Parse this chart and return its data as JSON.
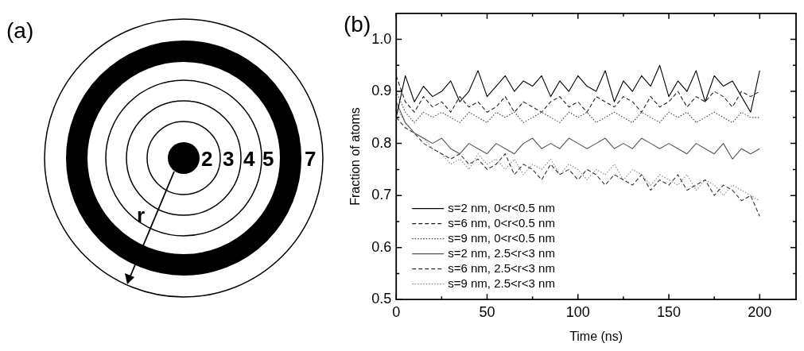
{
  "chart_data": [
    {
      "type": "other",
      "title": "(a)",
      "annotations": [
        "2",
        "3",
        "4",
        "5",
        "7",
        "r"
      ]
    },
    {
      "type": "line",
      "title": "(b)",
      "xlabel": "Time (ns)",
      "ylabel": "Fraction of atoms",
      "x": [
        0,
        5,
        10,
        15,
        20,
        25,
        30,
        35,
        40,
        45,
        50,
        55,
        60,
        65,
        70,
        75,
        80,
        85,
        90,
        95,
        100,
        105,
        110,
        115,
        120,
        125,
        130,
        135,
        140,
        145,
        150,
        155,
        160,
        165,
        170,
        175,
        180,
        185,
        190,
        195,
        200
      ],
      "series": [
        {
          "name": "s=2 nm, 0<r<0.5 nm",
          "color": "#000000",
          "line_style": "solid",
          "values": [
            0.85,
            0.93,
            0.88,
            0.91,
            0.89,
            0.9,
            0.92,
            0.88,
            0.9,
            0.94,
            0.89,
            0.91,
            0.93,
            0.9,
            0.92,
            0.91,
            0.93,
            0.89,
            0.92,
            0.9,
            0.93,
            0.91,
            0.9,
            0.94,
            0.88,
            0.92,
            0.9,
            0.93,
            0.91,
            0.95,
            0.89,
            0.92,
            0.9,
            0.94,
            0.88,
            0.93,
            0.91,
            0.92,
            0.89,
            0.86,
            0.94
          ]
        },
        {
          "name": "s=6 nm, 0<r<0.5 nm",
          "color": "#222222",
          "line_style": "dashed",
          "values": [
            0.93,
            0.88,
            0.86,
            0.89,
            0.87,
            0.88,
            0.86,
            0.89,
            0.87,
            0.88,
            0.86,
            0.87,
            0.89,
            0.86,
            0.88,
            0.87,
            0.86,
            0.88,
            0.89,
            0.87,
            0.88,
            0.86,
            0.89,
            0.88,
            0.87,
            0.89,
            0.88,
            0.86,
            0.89,
            0.87,
            0.88,
            0.9,
            0.87,
            0.89,
            0.88,
            0.9,
            0.89,
            0.87,
            0.9,
            0.89,
            0.9
          ]
        },
        {
          "name": "s=9 nm, 0<r<0.5 nm",
          "color": "#444444",
          "line_style": "dotted",
          "values": [
            0.9,
            0.86,
            0.84,
            0.86,
            0.85,
            0.86,
            0.85,
            0.84,
            0.86,
            0.85,
            0.84,
            0.86,
            0.85,
            0.86,
            0.84,
            0.85,
            0.86,
            0.85,
            0.84,
            0.86,
            0.85,
            0.86,
            0.84,
            0.85,
            0.86,
            0.85,
            0.84,
            0.86,
            0.85,
            0.84,
            0.86,
            0.85,
            0.86,
            0.84,
            0.85,
            0.86,
            0.85,
            0.84,
            0.86,
            0.85,
            0.85
          ]
        },
        {
          "name": "s=2 nm, 2.5<r<3 nm",
          "color": "#555555",
          "line_style": "solid",
          "values": [
            0.88,
            0.84,
            0.82,
            0.81,
            0.8,
            0.81,
            0.79,
            0.78,
            0.8,
            0.79,
            0.78,
            0.8,
            0.79,
            0.78,
            0.8,
            0.81,
            0.79,
            0.8,
            0.79,
            0.81,
            0.8,
            0.79,
            0.8,
            0.81,
            0.79,
            0.8,
            0.79,
            0.81,
            0.8,
            0.79,
            0.8,
            0.79,
            0.78,
            0.8,
            0.79,
            0.78,
            0.8,
            0.77,
            0.79,
            0.78,
            0.79
          ]
        },
        {
          "name": "s=6 nm, 2.5<r<3 nm",
          "color": "#333333",
          "line_style": "dashed",
          "values": [
            0.85,
            0.83,
            0.82,
            0.8,
            0.79,
            0.78,
            0.77,
            0.78,
            0.76,
            0.77,
            0.75,
            0.76,
            0.78,
            0.74,
            0.76,
            0.75,
            0.73,
            0.76,
            0.74,
            0.75,
            0.73,
            0.75,
            0.74,
            0.72,
            0.74,
            0.73,
            0.72,
            0.74,
            0.71,
            0.73,
            0.72,
            0.74,
            0.71,
            0.72,
            0.73,
            0.7,
            0.72,
            0.71,
            0.69,
            0.7,
            0.66
          ]
        },
        {
          "name": "s=9 nm, 2.5<r<3 nm",
          "color": "#888888",
          "line_style": "dotted",
          "values": [
            0.87,
            0.84,
            0.82,
            0.81,
            0.79,
            0.78,
            0.76,
            0.77,
            0.75,
            0.78,
            0.76,
            0.77,
            0.75,
            0.77,
            0.74,
            0.76,
            0.75,
            0.77,
            0.74,
            0.76,
            0.75,
            0.73,
            0.75,
            0.74,
            0.76,
            0.73,
            0.75,
            0.74,
            0.72,
            0.74,
            0.73,
            0.72,
            0.74,
            0.71,
            0.73,
            0.72,
            0.7,
            0.72,
            0.71,
            0.7,
            0.69
          ]
        }
      ],
      "xlim": [
        0,
        220
      ],
      "xticks": [
        0,
        {
          "value": 25,
          "label": null
        },
        50,
        {
          "value": 75,
          "label": null
        },
        100,
        {
          "value": 125,
          "label": null
        },
        150,
        {
          "value": 175,
          "label": null
        },
        200
      ],
      "ylim": [
        0.5,
        1.05
      ],
      "yticks": [
        0.5,
        {
          "value": 0.55,
          "label": null
        },
        0.6,
        {
          "value": 0.65,
          "label": null
        },
        0.7,
        {
          "value": 0.75,
          "label": null
        },
        0.8,
        {
          "value": 0.85,
          "label": null
        },
        0.9,
        {
          "value": 0.95,
          "label": null
        },
        {
          "value": 1,
          "label": "1.0"
        }
      ],
      "legend": "bottom left",
      "marker": "none"
    }
  ]
}
